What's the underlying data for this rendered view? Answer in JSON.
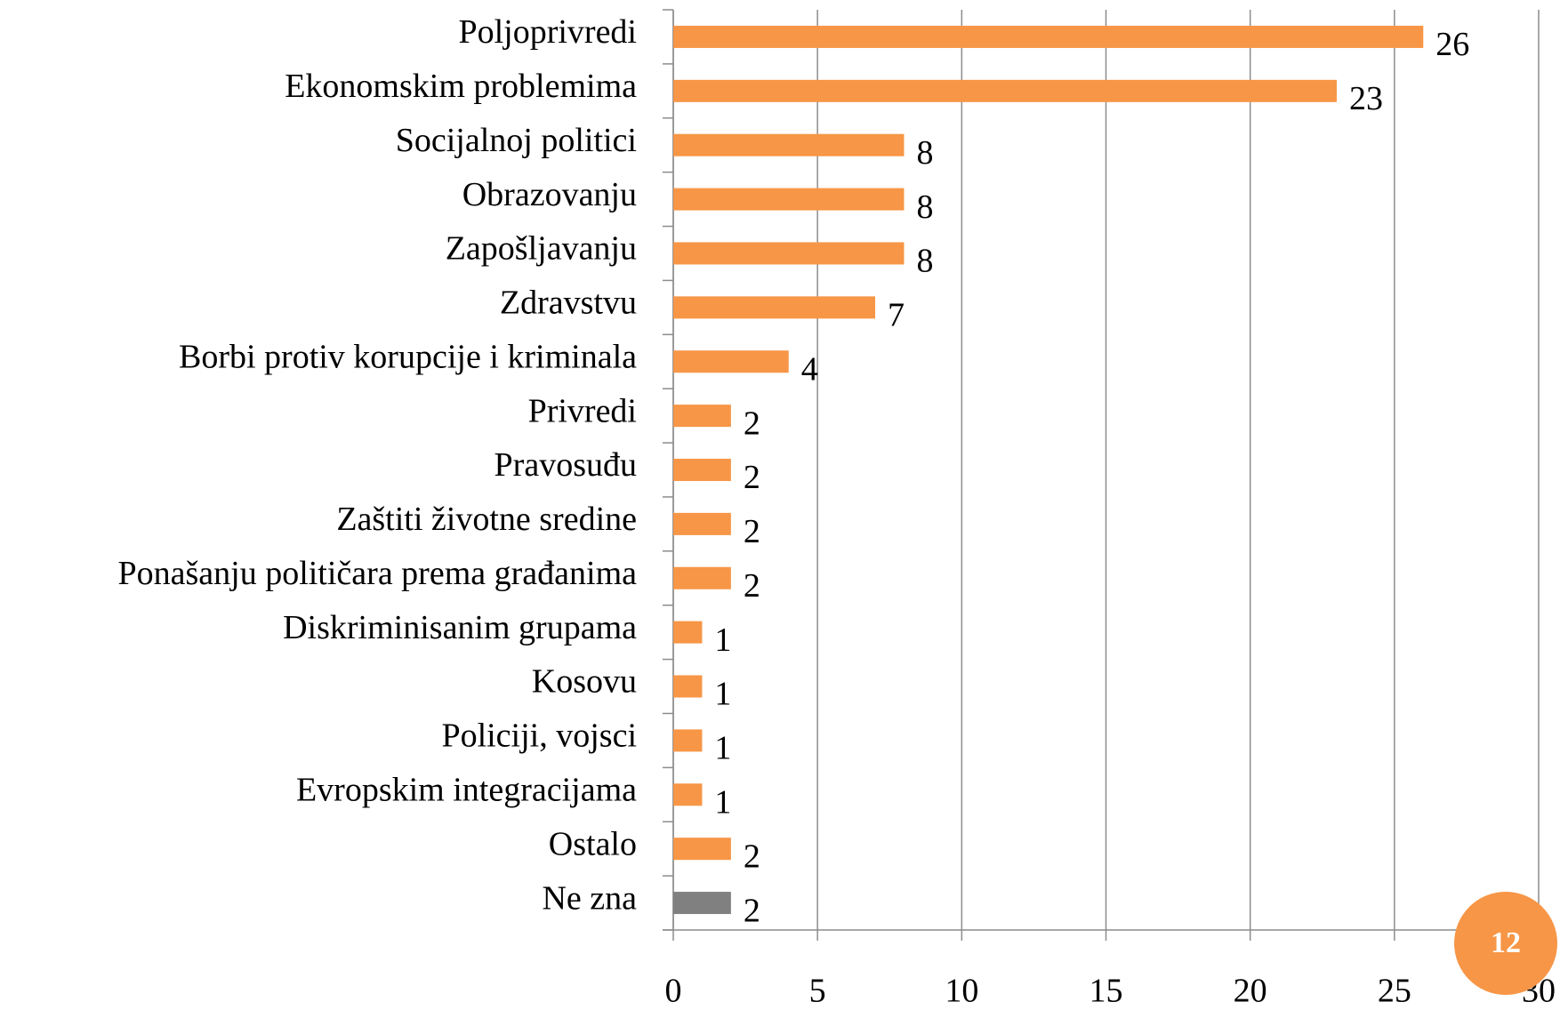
{
  "chart_data": {
    "type": "bar",
    "orientation": "horizontal",
    "categories": [
      "Poljoprivredi",
      "Ekonomskim problemima",
      "Socijalnoj politici",
      "Obrazovanju",
      "Zapošljavanju",
      "Zdravstvu",
      "Borbi protiv korupcije i kriminala",
      "Privredi",
      "Pravosuđu",
      "Zaštiti životne sredine",
      "Ponašanju političara prema građanima",
      "Diskriminisanim grupama",
      "Kosovu",
      "Policiji, vojsci",
      "Evropskim integracijama",
      "Ostalo",
      "Ne zna"
    ],
    "values": [
      26,
      23,
      8,
      8,
      8,
      7,
      4,
      2,
      2,
      2,
      2,
      1,
      1,
      1,
      1,
      2,
      2
    ],
    "colors": [
      "#f79646",
      "#f79646",
      "#f79646",
      "#f79646",
      "#f79646",
      "#f79646",
      "#f79646",
      "#f79646",
      "#f79646",
      "#f79646",
      "#f79646",
      "#f79646",
      "#f79646",
      "#f79646",
      "#f79646",
      "#f79646",
      "#808080"
    ],
    "xlim": [
      0,
      30
    ],
    "xticks": [
      0,
      5,
      10,
      15,
      20,
      25,
      30
    ],
    "grid": true
  },
  "page_number": "12"
}
